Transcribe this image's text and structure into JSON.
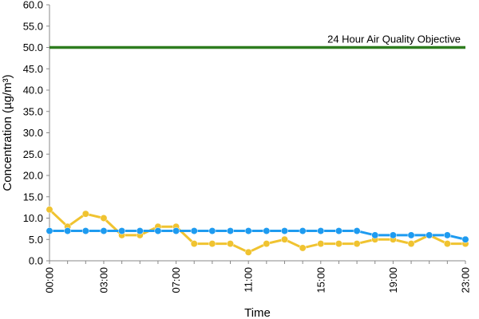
{
  "chart_data": {
    "type": "line",
    "title": "",
    "xlabel": "Time",
    "ylabel": "Concentration (µg/m³)",
    "ylim": [
      0,
      60
    ],
    "ytick_step": 5,
    "ytick_labels": [
      "0.0",
      "5.0",
      "10.0",
      "15.0",
      "20.0",
      "25.0",
      "30.0",
      "35.0",
      "40.0",
      "45.0",
      "50.0",
      "55.0",
      "60.0"
    ],
    "x": [
      "00:00",
      "01:00",
      "02:00",
      "03:00",
      "04:00",
      "05:00",
      "06:00",
      "07:00",
      "08:00",
      "09:00",
      "10:00",
      "11:00",
      "12:00",
      "13:00",
      "14:00",
      "15:00",
      "16:00",
      "17:00",
      "18:00",
      "19:00",
      "20:00",
      "21:00",
      "22:00",
      "23:00"
    ],
    "x_tick_labels": [
      "00:00",
      "03:00",
      "07:00",
      "11:00",
      "15:00",
      "19:00",
      "23:00"
    ],
    "grid": false,
    "legend": "none",
    "series": [
      {
        "name": "",
        "color": "#f0c330",
        "values": [
          12,
          8,
          11,
          10,
          6,
          6,
          8,
          8,
          4,
          4,
          4,
          2,
          4,
          5,
          3,
          4,
          4,
          4,
          5,
          5,
          4,
          6,
          4,
          4
        ]
      },
      {
        "name": "",
        "color": "#1e9bf0",
        "values": [
          7,
          7,
          7,
          7,
          7,
          7,
          7,
          7,
          7,
          7,
          7,
          7,
          7,
          7,
          7,
          7,
          7,
          7,
          6,
          6,
          6,
          6,
          6,
          5
        ]
      }
    ],
    "reference_line": {
      "value": 50,
      "label": "24 Hour Air Quality Objective",
      "color": "#2e7d1f"
    },
    "axis_color": "#888888"
  }
}
